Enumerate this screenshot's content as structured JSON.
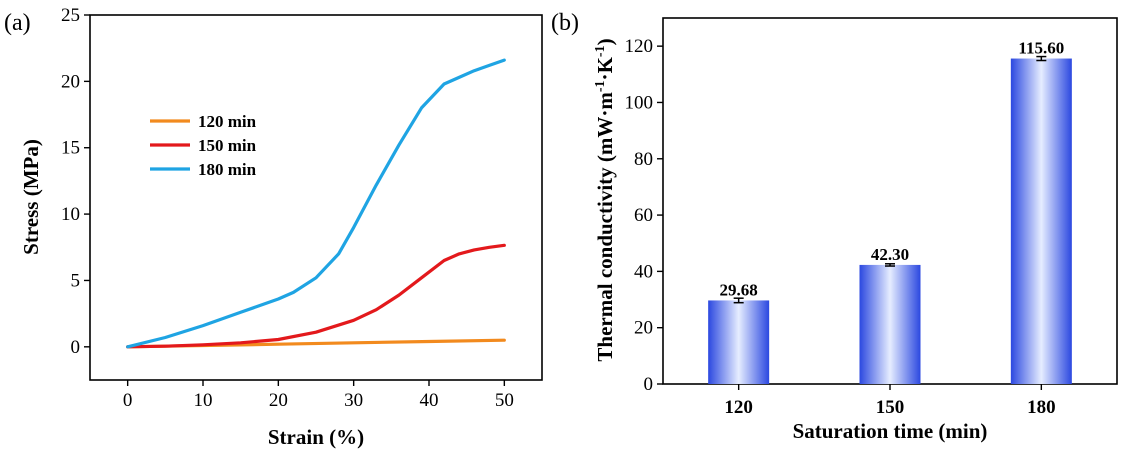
{
  "chart_data": [
    {
      "panel_label": "(a)",
      "type": "line",
      "xlabel": "Strain (%)",
      "ylabel": "Stress (MPa)",
      "xlim": [
        -5,
        55
      ],
      "ylim": [
        -2.5,
        25
      ],
      "xticks": [
        0,
        10,
        20,
        30,
        40,
        50
      ],
      "yticks": [
        0,
        5,
        10,
        15,
        20,
        25
      ],
      "legend_position": "upper-left",
      "series": [
        {
          "name": "120 min",
          "color": "#F28A1E",
          "x": [
            0,
            10,
            20,
            30,
            40,
            50
          ],
          "y": [
            0,
            0.1,
            0.2,
            0.3,
            0.4,
            0.5
          ]
        },
        {
          "name": "150 min",
          "color": "#E3191C",
          "x": [
            0,
            5,
            10,
            15,
            20,
            25,
            30,
            33,
            36,
            39,
            42,
            44,
            46,
            48,
            50
          ],
          "y": [
            0,
            0.05,
            0.15,
            0.3,
            0.55,
            1.1,
            2.0,
            2.8,
            3.9,
            5.2,
            6.5,
            7.0,
            7.3,
            7.5,
            7.65
          ]
        },
        {
          "name": "180 min",
          "color": "#1FA4E3",
          "x": [
            0,
            5,
            10,
            15,
            20,
            22,
            25,
            28,
            30,
            33,
            36,
            39,
            42,
            44,
            46,
            48,
            50
          ],
          "y": [
            0,
            0.7,
            1.6,
            2.6,
            3.6,
            4.1,
            5.2,
            7.0,
            9.0,
            12.2,
            15.2,
            18.0,
            19.8,
            20.3,
            20.8,
            21.2,
            21.6
          ]
        }
      ]
    },
    {
      "panel_label": "(b)",
      "type": "bar",
      "xlabel": "Saturation time (min)",
      "ylabel": "Thermal conductivity (mW·m",
      "ylabel_sup1": "-1",
      "ylabel_mid": "·K",
      "ylabel_sup2": "-1",
      "ylabel_end": ")",
      "categories": [
        "120",
        "150",
        "180"
      ],
      "values": [
        29.68,
        42.3,
        115.6
      ],
      "value_labels": [
        "29.68",
        "42.30",
        "115.60"
      ],
      "errors": [
        0.8,
        0.4,
        0.7
      ],
      "ylim": [
        0,
        130
      ],
      "yticks": [
        0,
        20,
        40,
        60,
        80,
        100,
        120
      ],
      "bar_color_edge": "#2B48E0",
      "bar_color_center": "#E6EDFF"
    }
  ]
}
